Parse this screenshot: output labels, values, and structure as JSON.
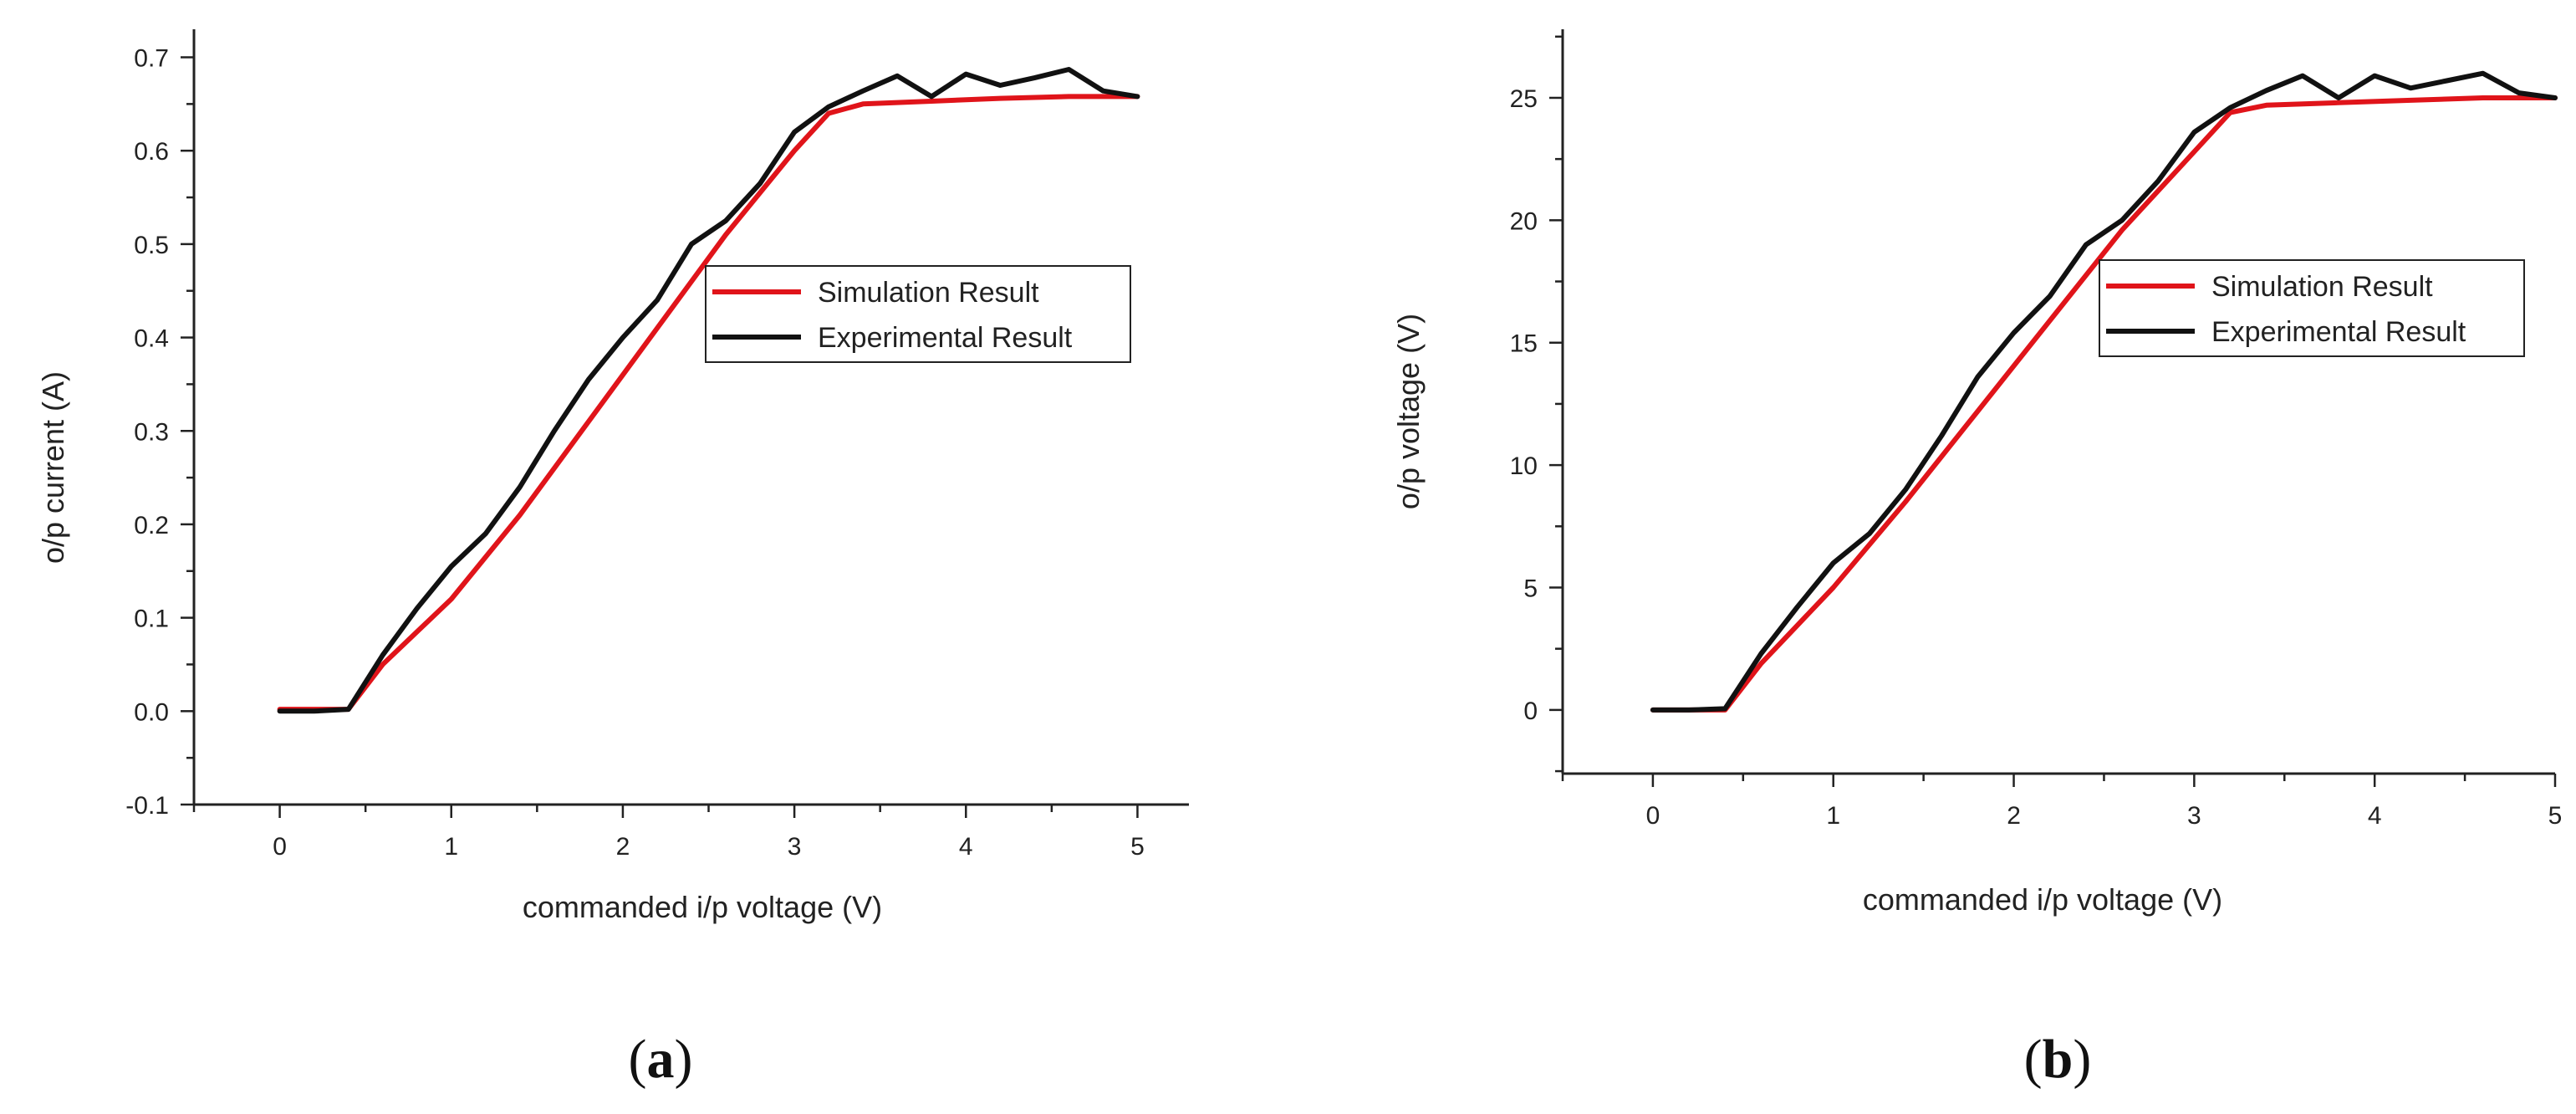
{
  "chart_data": [
    {
      "type": "line",
      "panel_label": "(a)",
      "panel_letter": "a",
      "xlabel": "commanded i/p voltage (V)",
      "ylabel": "o/p current (A)",
      "xlim": [
        -0.5,
        5.3
      ],
      "ylim": [
        -0.1,
        0.73
      ],
      "xticks": [
        0,
        1,
        2,
        3,
        4,
        5
      ],
      "yticks": [
        -0.1,
        0.0,
        0.1,
        0.2,
        0.3,
        0.4,
        0.5,
        0.6,
        0.7
      ],
      "xtick_labels": [
        "0",
        "1",
        "2",
        "3",
        "4",
        "5"
      ],
      "ytick_labels": [
        "-0.1",
        "0.0",
        "0.1",
        "0.2",
        "0.3",
        "0.4",
        "0.5",
        "0.6",
        "0.7"
      ],
      "legend": {
        "placement": "center-right"
      },
      "series": [
        {
          "name": "Simulation Result",
          "color": "#e0141a",
          "x": [
            0,
            0.4,
            0.6,
            1.0,
            1.4,
            1.8,
            2.2,
            2.6,
            3.0,
            3.2,
            3.4,
            3.8,
            4.2,
            4.6,
            5.0
          ],
          "y": [
            0.002,
            0.002,
            0.05,
            0.12,
            0.21,
            0.31,
            0.41,
            0.51,
            0.6,
            0.64,
            0.65,
            0.653,
            0.656,
            0.658,
            0.658
          ]
        },
        {
          "name": "Experimental Result",
          "color": "#111111",
          "x": [
            0,
            0.2,
            0.4,
            0.6,
            0.8,
            1.0,
            1.2,
            1.4,
            1.6,
            1.8,
            2.0,
            2.2,
            2.4,
            2.6,
            2.8,
            3.0,
            3.2,
            3.4,
            3.6,
            3.8,
            4.0,
            4.2,
            4.4,
            4.6,
            4.8,
            5.0
          ],
          "y": [
            0.0,
            0.0,
            0.002,
            0.06,
            0.11,
            0.155,
            0.19,
            0.24,
            0.3,
            0.355,
            0.4,
            0.44,
            0.5,
            0.525,
            0.565,
            0.62,
            0.647,
            0.664,
            0.68,
            0.658,
            0.682,
            0.67,
            0.678,
            0.687,
            0.664,
            0.658
          ]
        }
      ]
    },
    {
      "type": "line",
      "panel_label": "(b)",
      "panel_letter": "b",
      "xlabel": "commanded i/p voltage (V)",
      "ylabel": "o/p voltage (V)",
      "xlim": [
        -0.5,
        5.0
      ],
      "ylim": [
        -2.6,
        27.8
      ],
      "xticks": [
        0,
        1,
        2,
        3,
        4,
        5
      ],
      "yticks": [
        0,
        5,
        10,
        15,
        20,
        25
      ],
      "xtick_labels": [
        "0",
        "1",
        "2",
        "3",
        "4",
        "5"
      ],
      "ytick_labels": [
        "0",
        "5",
        "10",
        "15",
        "20",
        "25"
      ],
      "legend": {
        "placement": "center-right"
      },
      "series": [
        {
          "name": "Simulation Result",
          "color": "#e0141a",
          "x": [
            0,
            0.4,
            0.6,
            1.0,
            1.4,
            1.8,
            2.2,
            2.6,
            3.0,
            3.2,
            3.4,
            3.8,
            4.2,
            4.6,
            5.0
          ],
          "y": [
            0,
            0,
            1.9,
            5.0,
            8.5,
            12.2,
            15.9,
            19.6,
            22.8,
            24.4,
            24.7,
            24.8,
            24.9,
            25.0,
            25.0
          ]
        },
        {
          "name": "Experimental Result",
          "color": "#111111",
          "x": [
            0,
            0.2,
            0.4,
            0.6,
            0.8,
            1.0,
            1.2,
            1.4,
            1.6,
            1.8,
            2.0,
            2.2,
            2.4,
            2.6,
            2.8,
            3.0,
            3.2,
            3.4,
            3.6,
            3.8,
            4.0,
            4.2,
            4.4,
            4.6,
            4.8,
            5.0
          ],
          "y": [
            0,
            0,
            0.05,
            2.3,
            4.2,
            6.0,
            7.2,
            9.0,
            11.2,
            13.6,
            15.4,
            16.9,
            19.0,
            20.0,
            21.6,
            23.6,
            24.6,
            25.3,
            25.9,
            25.0,
            25.9,
            25.4,
            25.7,
            26.0,
            25.2,
            25.0
          ]
        }
      ]
    }
  ]
}
